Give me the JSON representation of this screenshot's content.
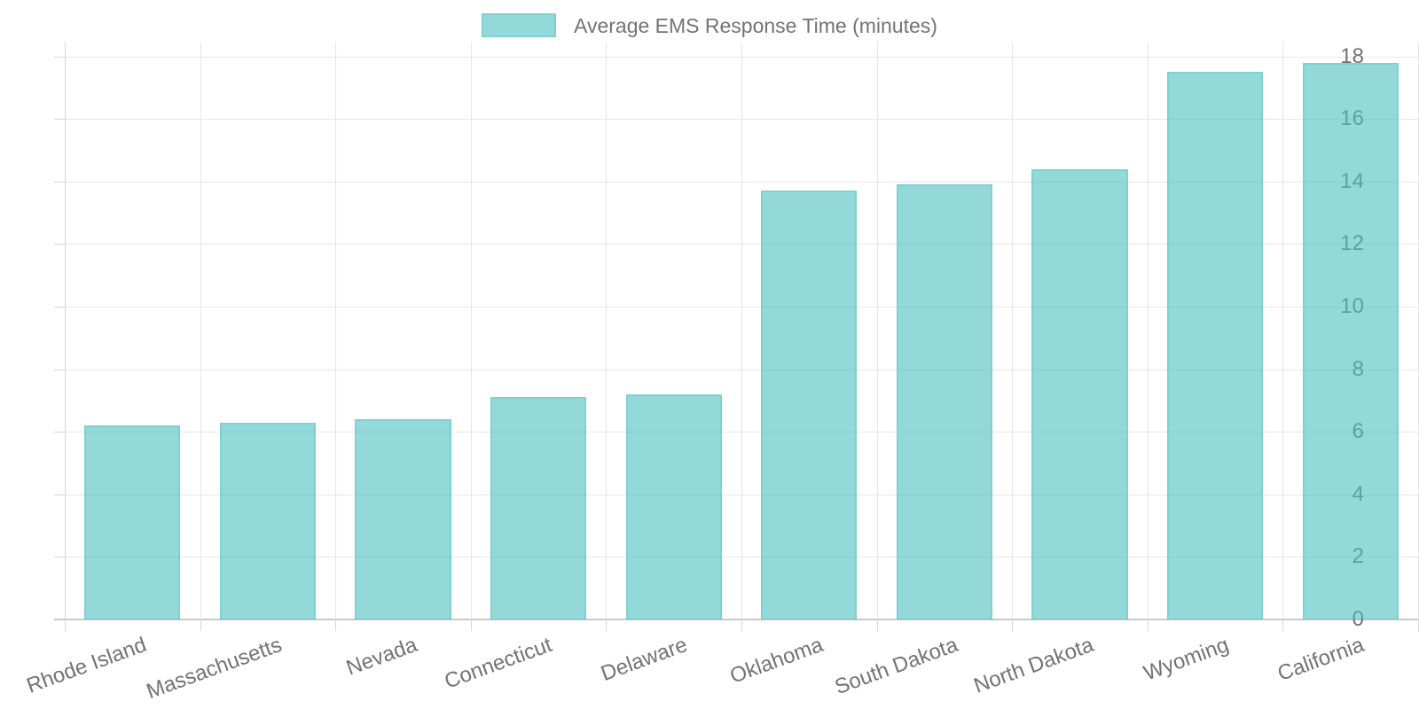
{
  "chart_data": {
    "type": "bar",
    "legend": {
      "label": "Average EMS Response Time (minutes)",
      "position": "top"
    },
    "categories": [
      "Rhode Island",
      "Massachusetts",
      "Nevada",
      "Connecticut",
      "Delaware",
      "Oklahoma",
      "South Dakota",
      "North Dakota",
      "Wyoming",
      "California"
    ],
    "values": [
      6.2,
      6.3,
      6.4,
      7.1,
      7.2,
      13.7,
      13.9,
      14.4,
      17.5,
      17.8
    ],
    "ylim": [
      0,
      18
    ],
    "ytick_step": 2,
    "yticks": [
      0,
      2,
      4,
      6,
      8,
      10,
      12,
      14,
      16,
      18
    ],
    "grid": true,
    "colors": {
      "bar_fill": "rgba(75,192,192,0.6)",
      "bar_border": "rgba(75,192,192,0.28)",
      "bar_hex_approx": "#92D7D9",
      "grid_line": "#E6E6E6",
      "axis_line": "#C9C9C9",
      "tick_line": "#D6D6D6",
      "text": "#737373",
      "background": "#FFFFFF"
    }
  }
}
